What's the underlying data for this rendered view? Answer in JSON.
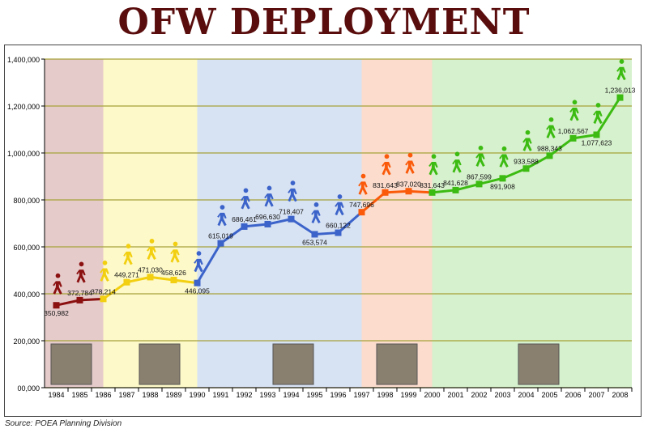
{
  "title": "OFW DEPLOYMENT",
  "source": "Source: POEA Planning Division",
  "chart_data": {
    "type": "line",
    "title": "OFW DEPLOYMENT",
    "categories": [
      "1984",
      "1985",
      "1986",
      "1987",
      "1988",
      "1989",
      "1990",
      "1991",
      "1992",
      "1993",
      "1994",
      "1995",
      "1996",
      "1997",
      "1998",
      "1999",
      "2000",
      "2001",
      "2002",
      "2003",
      "2004",
      "2005",
      "2006",
      "2007",
      "2008"
    ],
    "values": [
      350982,
      372784,
      378214,
      449271,
      471030,
      458626,
      446095,
      615019,
      686461,
      696630,
      718407,
      653574,
      660122,
      747696,
      831643,
      837020,
      831643,
      841628,
      867599,
      891908,
      933588,
      988343,
      1062567,
      1077623,
      1236013
    ],
    "data_labels": [
      "350,982",
      "372,784",
      "378,214",
      "449,271",
      "471,030",
      "458,626",
      "446,095",
      "615,019",
      "686,461",
      "696,630",
      "718,407",
      "653,574",
      "660,122",
      "747,696",
      "831,643",
      "837,020",
      "831,643",
      "841,628",
      "867,599",
      "891,908",
      "933,588",
      "988,343",
      "1,062,567",
      "1,077,623",
      "1,236,013"
    ],
    "ylim": [
      0,
      1400000
    ],
    "yticks": [
      "00,000",
      "200,000",
      "400,000",
      "600,000",
      "800,000",
      "1,000,000",
      "1,200,000",
      "1,400,000"
    ],
    "grid": true,
    "eras": [
      {
        "from": 0,
        "to": 2,
        "band": "#e6cbcb",
        "line": "#8b1010"
      },
      {
        "from": 2,
        "to": 6,
        "band": "#fdf9c8",
        "line": "#f2cf10"
      },
      {
        "from": 6,
        "to": 13,
        "band": "#d7e2f3",
        "line": "#3b63c9"
      },
      {
        "from": 13,
        "to": 16,
        "band": "#fbdccd",
        "line": "#fa5a0a"
      },
      {
        "from": 16,
        "to": 24,
        "band": "#d6f1cd",
        "line": "#3cbb12"
      }
    ],
    "icon": "walking-person-icon",
    "grid_color": "#a6a23a"
  }
}
